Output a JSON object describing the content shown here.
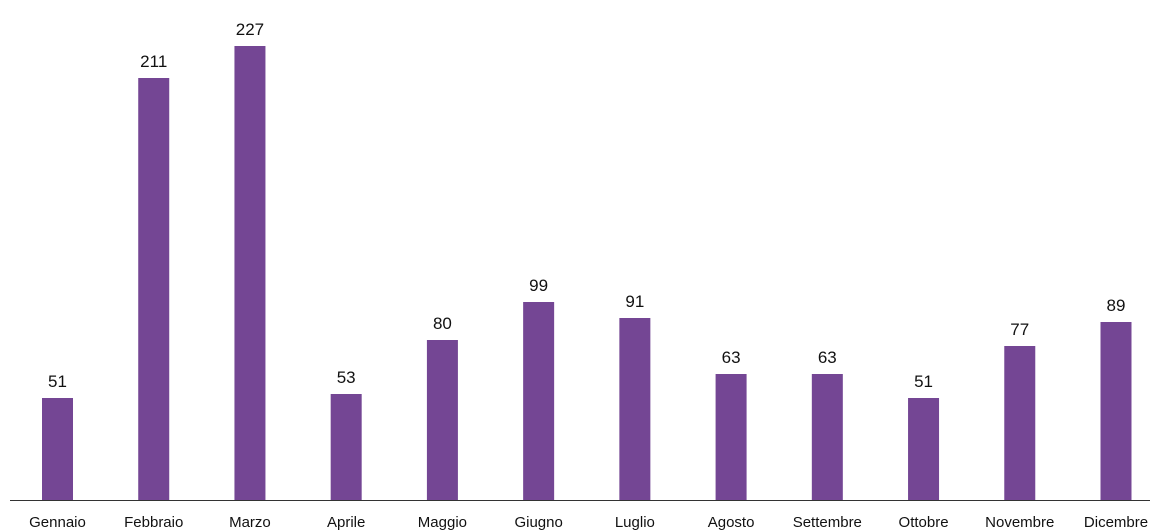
{
  "chart_data": {
    "type": "bar",
    "title": "",
    "xlabel": "",
    "ylabel": "",
    "categories": [
      "Gennaio",
      "Febbraio",
      "Marzo",
      "Aprile",
      "Maggio",
      "Giugno",
      "Luglio",
      "Agosto",
      "Settembre",
      "Ottobre",
      "Novembre",
      "Dicembre"
    ],
    "values": [
      51,
      211,
      227,
      53,
      80,
      99,
      91,
      63,
      63,
      51,
      77,
      89
    ],
    "value_labels": [
      "51",
      "211",
      "227",
      "53",
      "80",
      "99",
      "91",
      "63",
      "63",
      "51",
      "77",
      "89"
    ],
    "ylim": [
      0,
      227
    ],
    "grid": false,
    "legend": "none",
    "colors": {
      "bar": "#744694",
      "axis": "#333333",
      "text": "#111111",
      "background": "#ffffff"
    }
  }
}
